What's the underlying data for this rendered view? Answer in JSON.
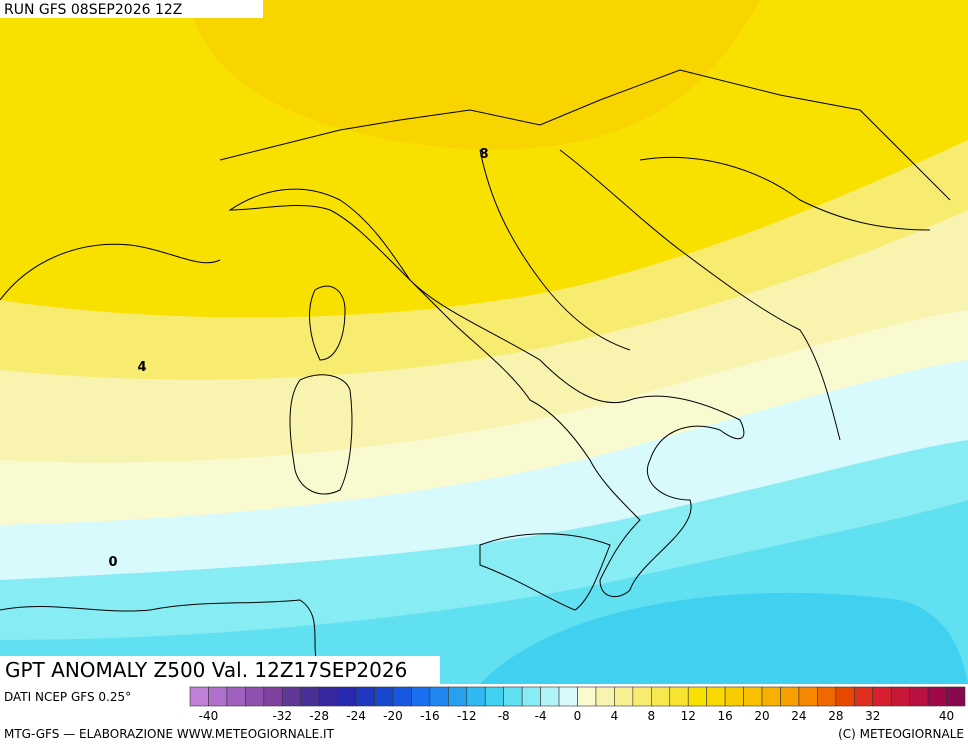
{
  "header": {
    "run": "RUN GFS 08SEP2026 12Z"
  },
  "map": {
    "contour_labels": [
      8,
      4,
      0
    ]
  },
  "footer": {
    "title": "GPT ANOMALY Z500 Val. 12Z17SEP2026",
    "source": "DATI NCEP GFS 0.25°",
    "credit": "MTG-GFS — ELABORAZIONE WWW.METEOGIORNALE.IT",
    "copyright": "(C) METEOGIORNALE"
  },
  "colorbar": {
    "range": [
      -42,
      42
    ],
    "labels": [
      -40,
      -32,
      -28,
      -24,
      -20,
      -16,
      -12,
      -8,
      -4,
      0,
      4,
      8,
      12,
      16,
      20,
      24,
      28,
      32,
      40
    ],
    "colors": [
      "#c080d8",
      "#b070cc",
      "#a060c0",
      "#9050b0",
      "#8040a0",
      "#603898",
      "#483098",
      "#3828a0",
      "#2828b0",
      "#2038c0",
      "#1848d0",
      "#1858e0",
      "#1870f0",
      "#2088f0",
      "#28a0f0",
      "#30b8f0",
      "#40d0f0",
      "#60e0f0",
      "#88ecf4",
      "#b0f4f8",
      "#d8fafc",
      "#fafad0",
      "#f8f4b0",
      "#f8f090",
      "#f8ec70",
      "#f8e850",
      "#f8e430",
      "#f8e000",
      "#f8d800",
      "#f8cc00",
      "#f8c000",
      "#f8b000",
      "#f8a000",
      "#f88800",
      "#f06800",
      "#e84800",
      "#e03020",
      "#d82030",
      "#c81838",
      "#b81040",
      "#a00848",
      "#880850"
    ]
  }
}
